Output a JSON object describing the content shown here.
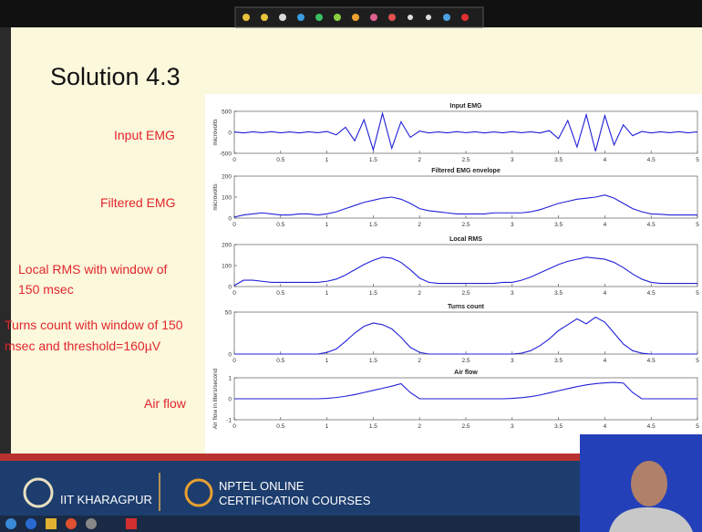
{
  "slide": {
    "title": "Solution 4.3",
    "labels": [
      [
        "Input EMG"
      ],
      [
        "Filtered EMG"
      ],
      [
        "Local RMS with window of",
        "150 msec"
      ],
      [
        "Turns count with window of 150",
        "msec and threshold=160µV"
      ],
      [
        "Air flow"
      ]
    ]
  },
  "footer": {
    "institute": "IIT KHARAGPUR",
    "course_line1": "NPTEL ONLINE",
    "course_line2": "CERTIFICATION COURSES"
  },
  "chart_data": [
    {
      "type": "line",
      "title": "Input EMG",
      "ylabel": "microvolts",
      "color": "#2020d8",
      "x": [
        0,
        0.1,
        0.2,
        0.3,
        0.4,
        0.5,
        0.6,
        0.7,
        0.8,
        0.9,
        1,
        1.1,
        1.2,
        1.3,
        1.4,
        1.5,
        1.6,
        1.7,
        1.8,
        1.9,
        2,
        2.1,
        2.2,
        2.3,
        2.4,
        2.5,
        2.6,
        2.7,
        2.8,
        2.9,
        3,
        3.1,
        3.2,
        3.3,
        3.4,
        3.5,
        3.6,
        3.7,
        3.8,
        3.9,
        4,
        4.1,
        4.2,
        4.3,
        4.4,
        4.5,
        4.6,
        4.7,
        4.8,
        4.9,
        5
      ],
      "values": [
        10,
        -15,
        12,
        -10,
        15,
        -12,
        10,
        -15,
        12,
        -10,
        20,
        -60,
        120,
        -200,
        300,
        -420,
        450,
        -380,
        250,
        -120,
        30,
        -15,
        10,
        -12,
        15,
        -10,
        12,
        -15,
        10,
        -12,
        15,
        -10,
        12,
        -15,
        40,
        -150,
        280,
        -350,
        420,
        -450,
        400,
        -300,
        180,
        -80,
        20,
        -15,
        12,
        -10,
        15,
        -12,
        10
      ],
      "xlim": [
        0,
        5
      ],
      "ylim": [
        -500,
        500
      ],
      "xticks": [
        0,
        0.5,
        1,
        1.5,
        2,
        2.5,
        3,
        3.5,
        4,
        4.5,
        5
      ],
      "yticks": [
        -500,
        0,
        500
      ]
    },
    {
      "type": "line",
      "title": "Filtered EMG envelope",
      "ylabel": "microvolts",
      "color": "#2020d8",
      "x": [
        0,
        0.1,
        0.2,
        0.3,
        0.4,
        0.5,
        0.6,
        0.7,
        0.8,
        0.9,
        1,
        1.1,
        1.2,
        1.3,
        1.4,
        1.5,
        1.6,
        1.7,
        1.8,
        1.9,
        2,
        2.1,
        2.2,
        2.3,
        2.4,
        2.5,
        2.6,
        2.7,
        2.8,
        2.9,
        3,
        3.1,
        3.2,
        3.3,
        3.4,
        3.5,
        3.6,
        3.7,
        3.8,
        3.9,
        4,
        4.1,
        4.2,
        4.3,
        4.4,
        4.5,
        4.6,
        4.7,
        4.8,
        4.9,
        5
      ],
      "values": [
        5,
        15,
        20,
        25,
        20,
        15,
        15,
        20,
        20,
        15,
        20,
        30,
        45,
        60,
        75,
        85,
        95,
        100,
        90,
        70,
        45,
        35,
        30,
        25,
        20,
        20,
        20,
        20,
        25,
        25,
        25,
        25,
        30,
        40,
        55,
        70,
        80,
        90,
        95,
        100,
        110,
        95,
        70,
        45,
        30,
        20,
        18,
        15,
        15,
        15,
        15
      ],
      "xlim": [
        0,
        5
      ],
      "ylim": [
        0,
        200
      ],
      "xticks": [
        0,
        0.5,
        1,
        1.5,
        2,
        2.5,
        3,
        3.5,
        4,
        4.5,
        5
      ],
      "yticks": [
        0,
        100,
        200
      ]
    },
    {
      "type": "line",
      "title": "Local RMS",
      "color": "#2020d8",
      "x": [
        0,
        0.1,
        0.2,
        0.3,
        0.4,
        0.5,
        0.6,
        0.7,
        0.8,
        0.9,
        1,
        1.1,
        1.2,
        1.3,
        1.4,
        1.5,
        1.6,
        1.7,
        1.8,
        1.9,
        2,
        2.1,
        2.2,
        2.3,
        2.4,
        2.5,
        2.6,
        2.7,
        2.8,
        2.9,
        3,
        3.1,
        3.2,
        3.3,
        3.4,
        3.5,
        3.6,
        3.7,
        3.8,
        3.9,
        4,
        4.1,
        4.2,
        4.3,
        4.4,
        4.5,
        4.6,
        4.7,
        4.8,
        4.9,
        5
      ],
      "values": [
        5,
        30,
        30,
        25,
        20,
        20,
        20,
        20,
        20,
        20,
        25,
        35,
        55,
        80,
        105,
        125,
        140,
        135,
        115,
        80,
        40,
        20,
        15,
        15,
        15,
        15,
        15,
        15,
        15,
        20,
        20,
        30,
        45,
        65,
        85,
        105,
        120,
        130,
        140,
        135,
        130,
        115,
        90,
        60,
        35,
        20,
        15,
        15,
        15,
        15,
        15
      ],
      "xlim": [
        0,
        5
      ],
      "ylim": [
        0,
        200
      ],
      "xticks": [
        0,
        0.5,
        1,
        1.5,
        2,
        2.5,
        3,
        3.5,
        4,
        4.5,
        5
      ],
      "yticks": [
        0,
        100,
        200
      ]
    },
    {
      "type": "line",
      "title": "Turns count",
      "color": "#2020d8",
      "x": [
        0,
        0.1,
        0.2,
        0.3,
        0.4,
        0.5,
        0.6,
        0.7,
        0.8,
        0.9,
        1,
        1.1,
        1.2,
        1.3,
        1.4,
        1.5,
        1.6,
        1.7,
        1.8,
        1.9,
        2,
        2.1,
        2.2,
        2.3,
        2.4,
        2.5,
        2.6,
        2.7,
        2.8,
        2.9,
        3,
        3.1,
        3.2,
        3.3,
        3.4,
        3.5,
        3.6,
        3.7,
        3.8,
        3.9,
        4,
        4.1,
        4.2,
        4.3,
        4.4,
        4.5,
        4.6,
        4.7,
        4.8,
        4.9,
        5
      ],
      "values": [
        0,
        0,
        0,
        0,
        0,
        0,
        0,
        0,
        0,
        0,
        2,
        6,
        15,
        25,
        33,
        37,
        35,
        30,
        20,
        8,
        2,
        0,
        0,
        0,
        0,
        0,
        0,
        0,
        0,
        0,
        0,
        1,
        4,
        10,
        18,
        28,
        35,
        42,
        36,
        44,
        38,
        25,
        12,
        4,
        1,
        0,
        0,
        0,
        0,
        0,
        0
      ],
      "xlim": [
        0,
        5
      ],
      "ylim": [
        0,
        50
      ],
      "xticks": [
        0,
        0.5,
        1,
        1.5,
        2,
        2.5,
        3,
        3.5,
        4,
        4.5,
        5
      ],
      "yticks": [
        0,
        50
      ]
    },
    {
      "type": "line",
      "title": "Air flow",
      "ylabel": "Air flow in liters/second",
      "color": "#2020d8",
      "x": [
        0,
        0.1,
        0.2,
        0.3,
        0.4,
        0.5,
        0.6,
        0.7,
        0.8,
        0.9,
        1,
        1.1,
        1.2,
        1.3,
        1.4,
        1.5,
        1.6,
        1.7,
        1.8,
        1.9,
        2,
        2.1,
        2.2,
        2.3,
        2.4,
        2.5,
        2.6,
        2.7,
        2.8,
        2.9,
        3,
        3.1,
        3.2,
        3.3,
        3.4,
        3.5,
        3.6,
        3.7,
        3.8,
        3.9,
        4,
        4.1,
        4.2,
        4.3,
        4.4,
        4.5,
        4.6,
        4.7,
        4.8,
        4.9,
        5
      ],
      "values": [
        0,
        0,
        0,
        0,
        0,
        0,
        0,
        0,
        0,
        0,
        0.02,
        0.06,
        0.12,
        0.2,
        0.3,
        0.4,
        0.5,
        0.6,
        0.72,
        0.3,
        0,
        0,
        0,
        0,
        0,
        0,
        0,
        0,
        0,
        0,
        0.02,
        0.05,
        0.1,
        0.18,
        0.28,
        0.38,
        0.48,
        0.58,
        0.66,
        0.72,
        0.76,
        0.78,
        0.75,
        0.3,
        0,
        0,
        0,
        0,
        0,
        0,
        0
      ],
      "xlim": [
        0,
        5
      ],
      "ylim": [
        -1,
        1
      ],
      "xticks": [
        0,
        0.5,
        1,
        1.5,
        2,
        2.5,
        3,
        3.5,
        4,
        4.5,
        5
      ],
      "yticks": [
        -1,
        0,
        1
      ]
    }
  ]
}
